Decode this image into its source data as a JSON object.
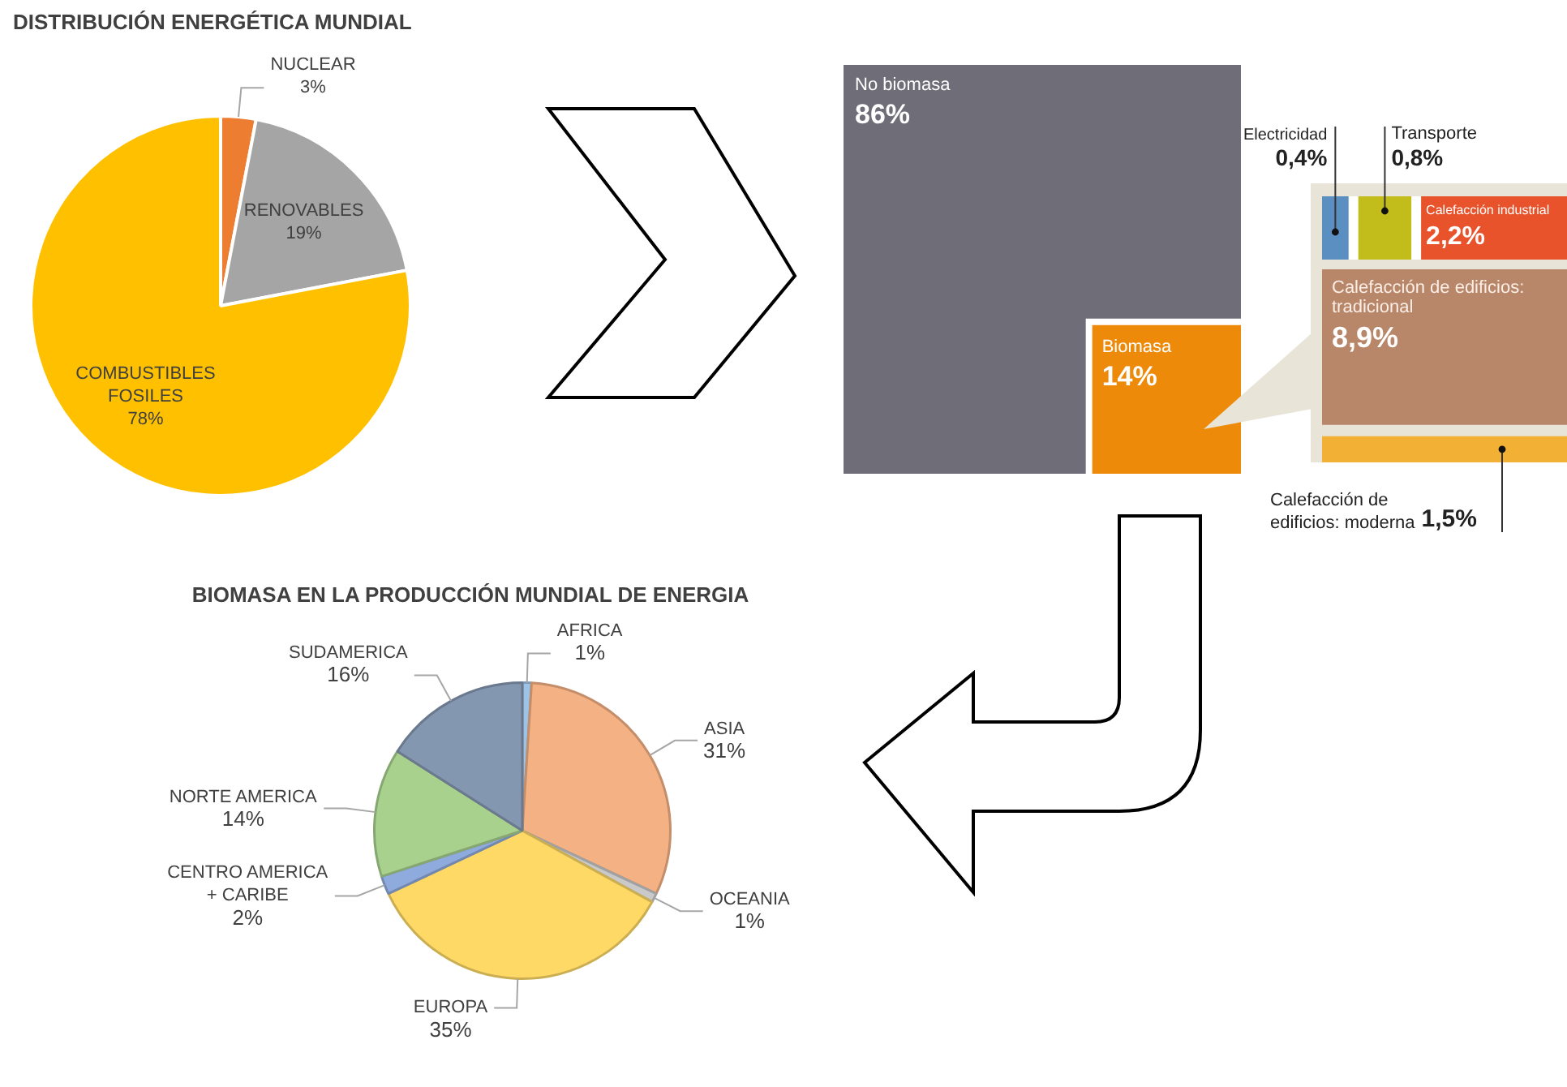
{
  "chart_data": [
    {
      "type": "pie",
      "title": "DISTRIBUCIÓN ENERGÉTICA MUNDIAL",
      "categories": [
        "NUCLEAR",
        "RENOVABLES",
        "COMBUSTIBLES FOSILES"
      ],
      "values": [
        3,
        19,
        78
      ],
      "value_labels": [
        "3%",
        "19%",
        "78%"
      ],
      "colors": [
        "#ed7d31",
        "#a5a5a5",
        "#ffc000"
      ],
      "legend": false
    },
    {
      "type": "other",
      "categories": [
        "No biomasa",
        "Biomasa",
        "Electricidad",
        "Transporte",
        "Calefacción industrial",
        "Calefacción de edificios: tradicional",
        "Calefacción de edificios: moderna"
      ],
      "values": [
        86,
        14,
        0.4,
        0.8,
        2.2,
        8.9,
        1.5
      ],
      "value_labels": [
        "86%",
        "14%",
        "0,4%",
        "0,8%",
        "2,2%",
        "8,9%",
        "1,5%"
      ],
      "colors": [
        "#6e6d78",
        "#ee8a0a",
        "#5b8fc2",
        "#c3bd1c",
        "#e8532b",
        "#b8876a",
        "#f2b134"
      ]
    },
    {
      "type": "pie",
      "title": "BIOMASA EN LA PRODUCCIÓN MUNDIAL DE ENERGIA",
      "categories": [
        "AFRICA",
        "ASIA",
        "OCEANIA",
        "EUROPA",
        "CENTRO AMERICA + CARIBE",
        "NORTE AMERICA",
        "SUDAMERICA"
      ],
      "values": [
        1,
        31,
        1,
        35,
        2,
        14,
        16
      ],
      "value_labels": [
        "1%",
        "31%",
        "1%",
        "35%",
        "2%",
        "14%",
        "16%"
      ],
      "colors": [
        "#9dc3e6",
        "#f4b183",
        "#c9c9c9",
        "#ffd966",
        "#8faadc",
        "#a9d18e",
        "#8497b0"
      ],
      "legend": false
    }
  ]
}
